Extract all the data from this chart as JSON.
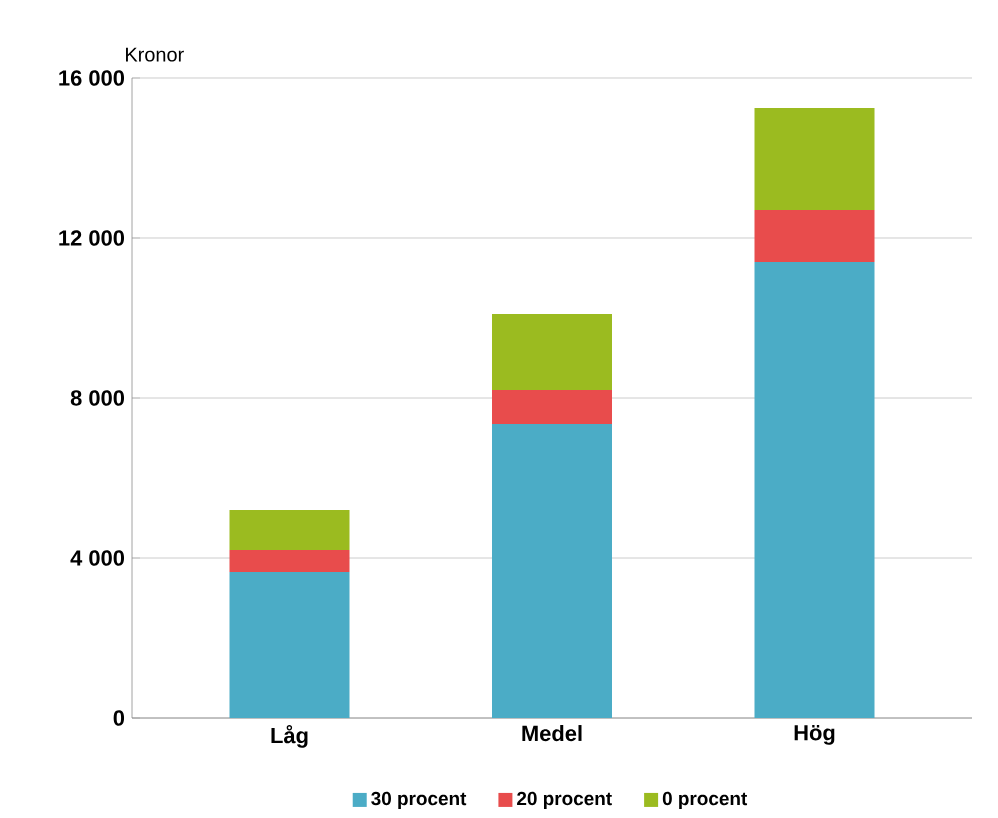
{
  "chart_data": {
    "type": "bar",
    "stacked": true,
    "ylabel": "Kronor",
    "categories": [
      "Låg",
      "Medel",
      "Hög"
    ],
    "series": [
      {
        "name": "30 procent",
        "color": "#4bacc6",
        "values": [
          3650,
          7350,
          11400
        ]
      },
      {
        "name": "20 procent",
        "color": "#e84c4c",
        "values": [
          550,
          850,
          1300
        ]
      },
      {
        "name": "0 procent",
        "color": "#9bbb20",
        "values": [
          1000,
          1900,
          2550
        ]
      }
    ],
    "ylim": [
      0,
      16000
    ],
    "yticks": [
      {
        "value": 0,
        "label": "0"
      },
      {
        "value": 4000,
        "label": "4 000"
      },
      {
        "value": 8000,
        "label": "8 000"
      },
      {
        "value": 12000,
        "label": "12 000"
      },
      {
        "value": 16000,
        "label": "16 000"
      }
    ],
    "grid": "y",
    "legend": "bottom"
  }
}
